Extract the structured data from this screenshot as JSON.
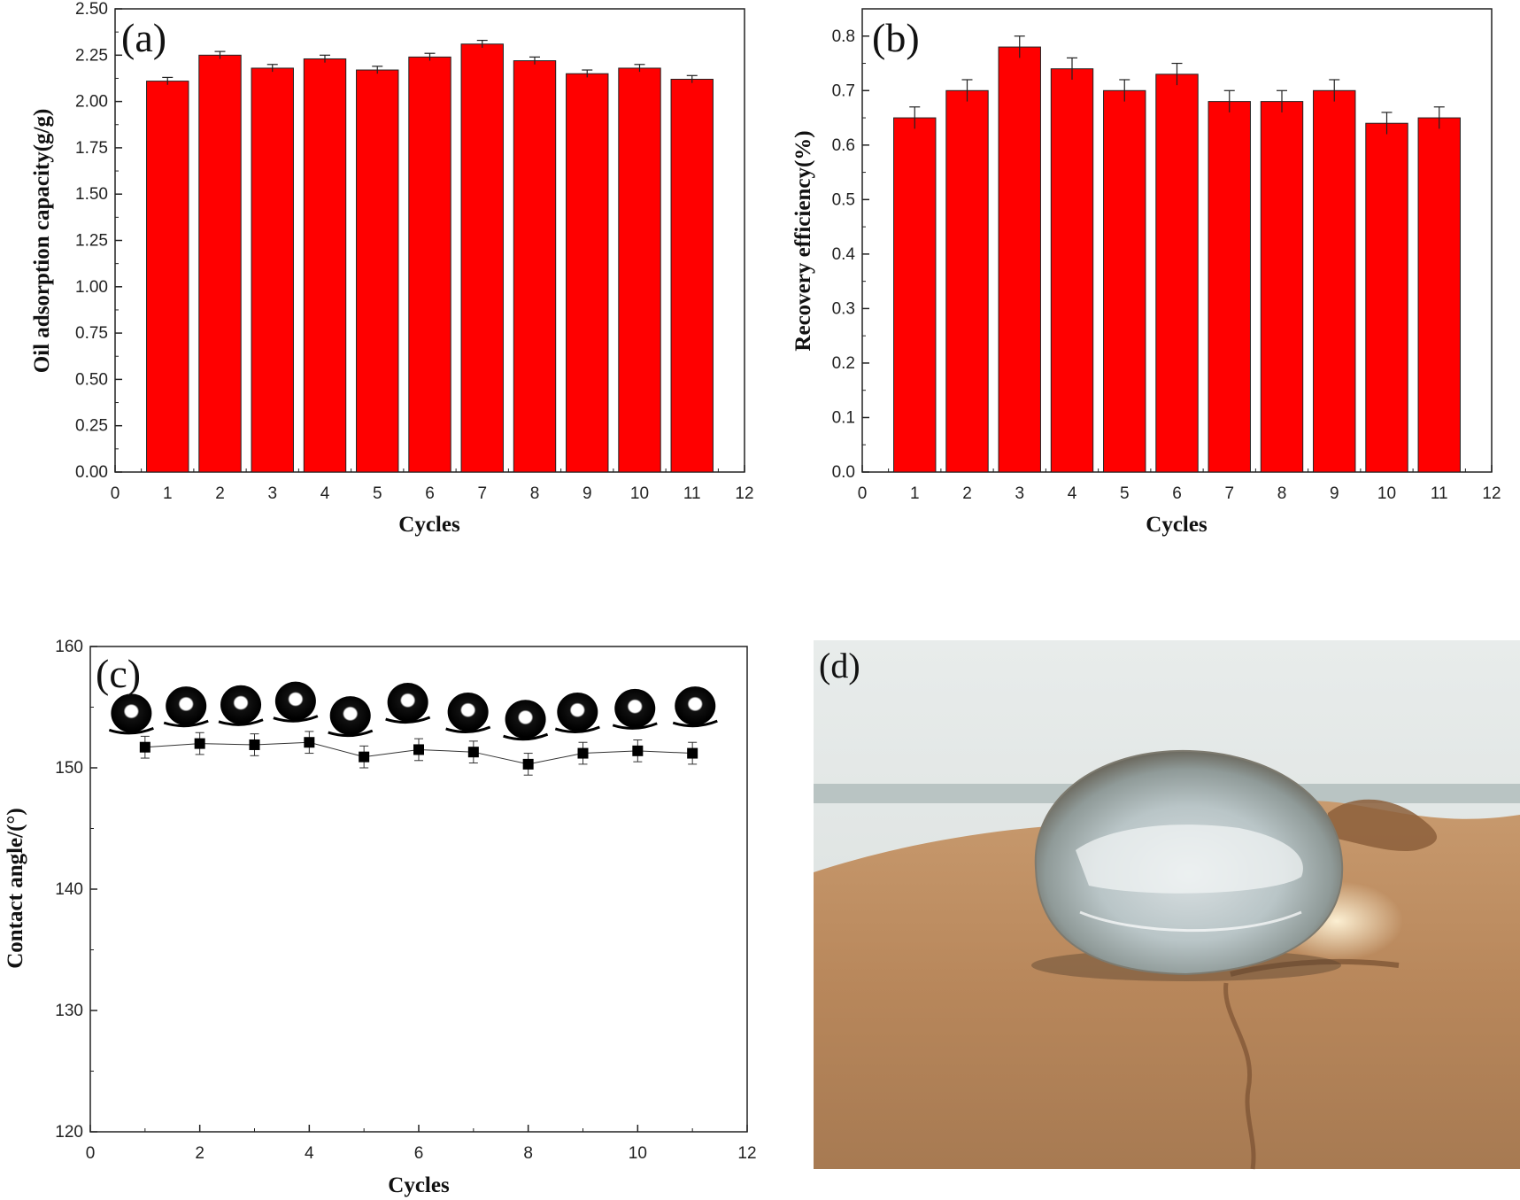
{
  "figure": {
    "colors": {
      "bar": "#ff0000",
      "bar_edge": "#222222",
      "axis": "#222222",
      "marker": "#000000"
    }
  },
  "chart_data": [
    {
      "id": "a",
      "panel_label": "(a)",
      "type": "bar",
      "categories": [
        1,
        2,
        3,
        4,
        5,
        6,
        7,
        8,
        9,
        10,
        11
      ],
      "values": [
        2.11,
        2.25,
        2.18,
        2.23,
        2.17,
        2.24,
        2.31,
        2.22,
        2.15,
        2.18,
        2.12
      ],
      "errors": [
        0.02,
        0.02,
        0.02,
        0.02,
        0.02,
        0.02,
        0.02,
        0.02,
        0.02,
        0.02,
        0.02
      ],
      "xlabel": "Cycles",
      "ylabel": "Oil adsorption capacity(g/g)",
      "xlim": [
        0,
        12
      ],
      "ylim": [
        0,
        2.5
      ],
      "xticks": [
        "0",
        "1",
        "2",
        "3",
        "4",
        "5",
        "6",
        "7",
        "8",
        "9",
        "10",
        "11",
        "12"
      ],
      "yticks": [
        "0.00",
        "0.25",
        "0.50",
        "0.75",
        "1.00",
        "1.25",
        "1.50",
        "1.75",
        "2.00",
        "2.25",
        "2.50"
      ],
      "grid": false
    },
    {
      "id": "b",
      "panel_label": "(b)",
      "type": "bar",
      "categories": [
        1,
        2,
        3,
        4,
        5,
        6,
        7,
        8,
        9,
        10,
        11
      ],
      "values": [
        0.65,
        0.7,
        0.78,
        0.74,
        0.7,
        0.73,
        0.68,
        0.68,
        0.7,
        0.64,
        0.65
      ],
      "errors": [
        0.02,
        0.02,
        0.02,
        0.02,
        0.02,
        0.02,
        0.02,
        0.02,
        0.02,
        0.02,
        0.02
      ],
      "xlabel": "Cycles",
      "ylabel": "Recovery efficiency(%)",
      "xlim": [
        0,
        12
      ],
      "ylim": [
        0,
        0.85
      ],
      "xticks": [
        "0",
        "1",
        "2",
        "3",
        "4",
        "5",
        "6",
        "7",
        "8",
        "9",
        "10",
        "11",
        "12"
      ],
      "yticks": [
        "0.0",
        "0.1",
        "0.2",
        "0.3",
        "0.4",
        "0.5",
        "0.6",
        "0.7",
        "0.8"
      ],
      "grid": false
    },
    {
      "id": "c",
      "panel_label": "(c)",
      "type": "line",
      "x": [
        1,
        2,
        3,
        4,
        5,
        6,
        7,
        8,
        9,
        10,
        11
      ],
      "y": [
        151.7,
        152.0,
        151.9,
        152.1,
        150.9,
        151.5,
        151.3,
        150.3,
        151.2,
        151.4,
        151.2
      ],
      "errors": [
        0.9,
        0.9,
        0.9,
        0.9,
        0.9,
        0.9,
        0.9,
        0.9,
        0.9,
        0.9,
        0.9
      ],
      "droplet_x": [
        0.75,
        1.75,
        2.75,
        3.75,
        4.75,
        5.8,
        6.9,
        7.95,
        8.9,
        9.95,
        11.05
      ],
      "droplet_y": [
        154.5,
        155.1,
        155.2,
        155.5,
        154.3,
        155.4,
        154.6,
        154.0,
        154.6,
        154.9,
        155.1
      ],
      "xlabel": "Cycles",
      "ylabel": "Contact angle/(°)",
      "xlim": [
        0,
        12
      ],
      "ylim": [
        120,
        160
      ],
      "xticks": [
        "0",
        "2",
        "4",
        "6",
        "8",
        "10",
        "12"
      ],
      "yticks": [
        "120",
        "130",
        "140",
        "150",
        "160"
      ],
      "grid": false
    }
  ],
  "photo": {
    "panel_label": "(d)"
  }
}
